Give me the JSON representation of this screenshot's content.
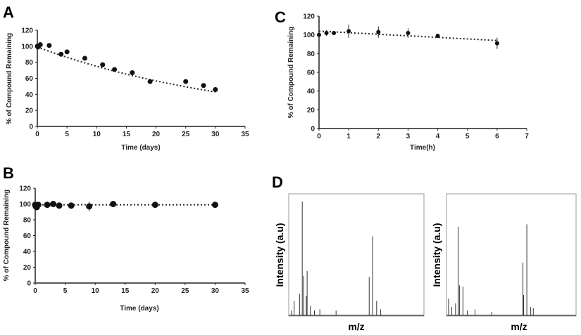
{
  "chart_data": [
    {
      "panel": "A",
      "type": "scatter",
      "xlabel": "Time (days)",
      "ylabel": "% of Compound Remaining",
      "xlim": [
        0,
        35
      ],
      "ylim": [
        0,
        120
      ],
      "xticks": [
        0,
        5,
        10,
        15,
        20,
        25,
        30,
        35
      ],
      "yticks": [
        0,
        20,
        40,
        60,
        80,
        100,
        120
      ],
      "trendline": "dotted exponential",
      "grid": false,
      "points": [
        [
          0,
          100
        ],
        [
          0.1,
          99
        ],
        [
          0.25,
          100
        ],
        [
          0.5,
          102
        ],
        [
          2,
          101
        ],
        [
          4,
          90
        ],
        [
          5,
          93
        ],
        [
          8,
          85
        ],
        [
          11,
          77
        ],
        [
          13,
          71
        ],
        [
          16,
          67
        ],
        [
          19,
          56
        ],
        [
          25,
          56
        ],
        [
          28,
          51
        ],
        [
          30,
          46
        ]
      ],
      "trend": {
        "start": 99,
        "end": 43
      }
    },
    {
      "panel": "B",
      "type": "scatter",
      "xlabel": "Time (days)",
      "ylabel": "% of Compound Remaining",
      "xlim": [
        0,
        35
      ],
      "ylim": [
        0,
        120
      ],
      "xticks": [
        0,
        5,
        10,
        15,
        20,
        25,
        30,
        35
      ],
      "yticks": [
        0,
        20,
        40,
        60,
        80,
        100,
        120
      ],
      "trendline": "dotted linear",
      "grid": false,
      "points": [
        [
          0,
          99
        ],
        [
          0.1,
          97
        ],
        [
          0.25,
          96
        ],
        [
          0.5,
          99
        ],
        [
          2,
          99
        ],
        [
          3,
          100
        ],
        [
          4,
          98
        ],
        [
          6,
          98
        ],
        [
          9,
          97
        ],
        [
          13,
          100
        ],
        [
          20,
          99
        ],
        [
          30,
          99
        ]
      ],
      "errors": [
        0,
        0,
        0,
        0,
        0,
        0,
        0,
        0,
        6,
        0,
        0,
        0
      ],
      "trend": {
        "start": 99,
        "end": 99
      }
    },
    {
      "panel": "C",
      "type": "scatter",
      "xlabel": "Time(h)",
      "ylabel": "% of Compound Remaining",
      "xlim": [
        0,
        7
      ],
      "ylim": [
        0,
        120
      ],
      "xticks": [
        0,
        1,
        2,
        3,
        4,
        5,
        6,
        7
      ],
      "yticks": [
        0,
        20,
        40,
        60,
        80,
        100,
        120
      ],
      "trendline": "dotted linear",
      "grid": false,
      "points": [
        [
          0,
          100
        ],
        [
          0.25,
          102
        ],
        [
          0.5,
          102
        ],
        [
          1,
          104
        ],
        [
          2,
          103
        ],
        [
          3,
          102
        ],
        [
          4,
          99
        ],
        [
          6,
          91
        ]
      ],
      "errors": [
        0,
        3,
        1,
        7,
        6,
        5,
        1,
        6
      ],
      "trend": {
        "start": 104,
        "end": 94
      }
    },
    {
      "panel": "D",
      "type": "bar",
      "xlabel": "m/z",
      "ylabel": "Intensity (a.u)",
      "spectra": [
        {
          "peaks": [
            [
              2,
              4
            ],
            [
              4,
              12
            ],
            [
              8,
              18
            ],
            [
              10,
              95
            ],
            [
              11,
              33
            ],
            [
              13,
              16
            ],
            [
              13.6,
              37
            ],
            [
              16,
              8
            ],
            [
              19,
              4
            ],
            [
              23,
              5
            ],
            [
              35,
              4
            ],
            [
              59.5,
              32
            ],
            [
              62,
              66
            ],
            [
              65,
              12
            ],
            [
              68,
              5
            ]
          ]
        },
        {
          "peaks": [
            [
              1.6,
              14
            ],
            [
              4,
              7
            ],
            [
              7,
              10
            ],
            [
              9,
              74
            ],
            [
              10,
              25
            ],
            [
              12.7,
              24
            ],
            [
              16,
              4
            ],
            [
              22,
              5
            ],
            [
              35,
              3
            ],
            [
              59,
              44
            ],
            [
              59.5,
              17
            ],
            [
              62,
              76
            ],
            [
              65,
              7
            ],
            [
              67,
              6
            ]
          ]
        }
      ]
    }
  ]
}
